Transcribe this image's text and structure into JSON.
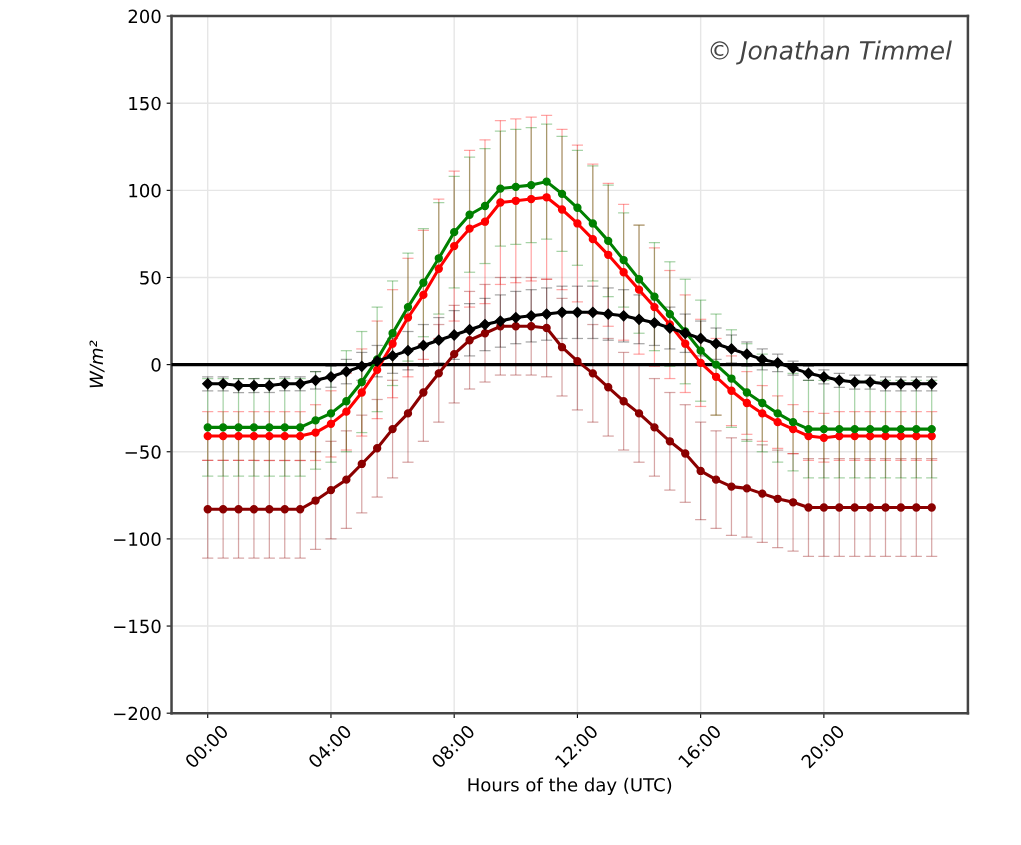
{
  "chart_data": {
    "type": "line",
    "xlabel": "Hours of the day (UTC)",
    "ylabel": "W/m²",
    "x": [
      0,
      0.5,
      1,
      1.5,
      2,
      2.5,
      3,
      3.5,
      4,
      4.5,
      5,
      5.5,
      6,
      6.5,
      7,
      7.5,
      8,
      8.5,
      9,
      9.5,
      10,
      10.5,
      11,
      11.5,
      12,
      12.5,
      13,
      13.5,
      14,
      14.5,
      15,
      15.5,
      16,
      16.5,
      17,
      17.5,
      18,
      18.5,
      19,
      19.5,
      20,
      20.5,
      21,
      21.5,
      22,
      22.5,
      23,
      23.5
    ],
    "xlim": [
      -1.175,
      24.675
    ],
    "xticks": [
      {
        "value": 0,
        "label": "00:00"
      },
      {
        "value": 4,
        "label": "04:00"
      },
      {
        "value": 8,
        "label": "08:00"
      },
      {
        "value": 12,
        "label": "12:00"
      },
      {
        "value": 16,
        "label": "16:00"
      },
      {
        "value": 20,
        "label": "20:00"
      }
    ],
    "ylim": [
      -200,
      200
    ],
    "yticks": [
      -200,
      -150,
      -100,
      -50,
      0,
      50,
      100,
      150,
      200
    ],
    "grid": true,
    "line_style": "solid",
    "ref_lines": [
      {
        "axis": "y",
        "value": 0,
        "color": "#000000"
      }
    ],
    "annotations": [
      "© Jonathan Timmel"
    ],
    "series": [
      {
        "color": "#8b0000",
        "marker": "circle",
        "values": [
          -83,
          -83,
          -83,
          -83,
          -83,
          -83,
          -83,
          -78,
          -72,
          -66,
          -57,
          -48,
          -37,
          -28,
          -16,
          -5,
          6,
          14,
          18,
          22,
          22,
          22,
          21,
          10,
          2,
          -5,
          -13,
          -21,
          -28,
          -36,
          -44,
          -51,
          -61,
          -66,
          -70,
          -71,
          -74,
          -77,
          -79,
          -82,
          -82,
          -82,
          -82,
          -82,
          -82,
          -82,
          -82,
          -82
        ],
        "errors": [
          28,
          28,
          28,
          28,
          28,
          28,
          28,
          28,
          28,
          28,
          28,
          28,
          28,
          28,
          28,
          28,
          28,
          28,
          28,
          28,
          28,
          28,
          28,
          28,
          28,
          28,
          28,
          28,
          28,
          28,
          28,
          28,
          28,
          28,
          28,
          28,
          28,
          28,
          28,
          28,
          28,
          28,
          28,
          28,
          28,
          28,
          28,
          28
        ]
      },
      {
        "color": "#ff0000",
        "marker": "circle",
        "values": [
          -41,
          -41,
          -41,
          -41,
          -41,
          -41,
          -41,
          -39,
          -34,
          -27,
          -16,
          -3,
          12,
          27,
          40,
          55,
          68,
          78,
          82,
          93,
          94,
          95,
          96,
          89,
          81,
          72,
          63,
          53,
          43,
          33,
          23,
          12,
          1,
          -7,
          -15,
          -22,
          -28,
          -33,
          -37,
          -41,
          -42,
          -41,
          -41,
          -41,
          -41,
          -41,
          -41,
          -41
        ],
        "errors": [
          14,
          14,
          14,
          14,
          14,
          14,
          14,
          16,
          19,
          22,
          25,
          28,
          31,
          34,
          37,
          40,
          43,
          45,
          47,
          47,
          47,
          47,
          47,
          46,
          45,
          43,
          41,
          39,
          37,
          34,
          31,
          28,
          25,
          22,
          20,
          18,
          16,
          15,
          14,
          14,
          14,
          14,
          14,
          14,
          14,
          14,
          14,
          14
        ]
      },
      {
        "color": "#008000",
        "marker": "circle",
        "values": [
          -36,
          -36,
          -36,
          -36,
          -36,
          -36,
          -36,
          -32,
          -28,
          -21,
          -10,
          3,
          18,
          33,
          47,
          61,
          76,
          86,
          91,
          101,
          102,
          103,
          105,
          98,
          90,
          81,
          71,
          60,
          49,
          39,
          29,
          19,
          8,
          0,
          -8,
          -16,
          -22,
          -28,
          -33,
          -37,
          -37,
          -37,
          -37,
          -37,
          -37,
          -37,
          -37,
          -37
        ],
        "errors": [
          28,
          28,
          28,
          28,
          28,
          28,
          28,
          28,
          28,
          29,
          29,
          30,
          30,
          31,
          31,
          32,
          32,
          33,
          33,
          33,
          33,
          33,
          33,
          33,
          33,
          33,
          32,
          27,
          31,
          31,
          30,
          30,
          29,
          29,
          28,
          28,
          28,
          28,
          28,
          28,
          28,
          28,
          28,
          28,
          28,
          28,
          28,
          28
        ]
      },
      {
        "color": "#000000",
        "marker": "diamond",
        "values": [
          -11,
          -11,
          -12,
          -12,
          -12,
          -11,
          -11,
          -9,
          -7,
          -4,
          -1,
          2,
          5,
          8,
          11,
          14,
          17,
          20,
          23,
          25,
          27,
          28,
          29,
          30,
          30,
          30,
          29,
          28,
          26,
          24,
          21,
          18,
          15,
          12,
          9,
          6,
          3,
          1,
          -2,
          -5,
          -7,
          -9,
          -10,
          -10,
          -11,
          -11,
          -11,
          -11
        ],
        "errors": [
          4,
          4,
          4,
          4,
          4,
          4,
          4,
          5,
          6,
          7,
          8,
          9,
          10,
          11,
          12,
          13,
          14,
          15,
          15,
          15,
          15,
          15,
          15,
          15,
          15,
          15,
          15,
          15,
          14,
          13,
          12,
          11,
          10,
          9,
          8,
          7,
          6,
          5,
          4,
          4,
          4,
          4,
          4,
          4,
          4,
          4,
          4,
          4
        ]
      }
    ]
  }
}
